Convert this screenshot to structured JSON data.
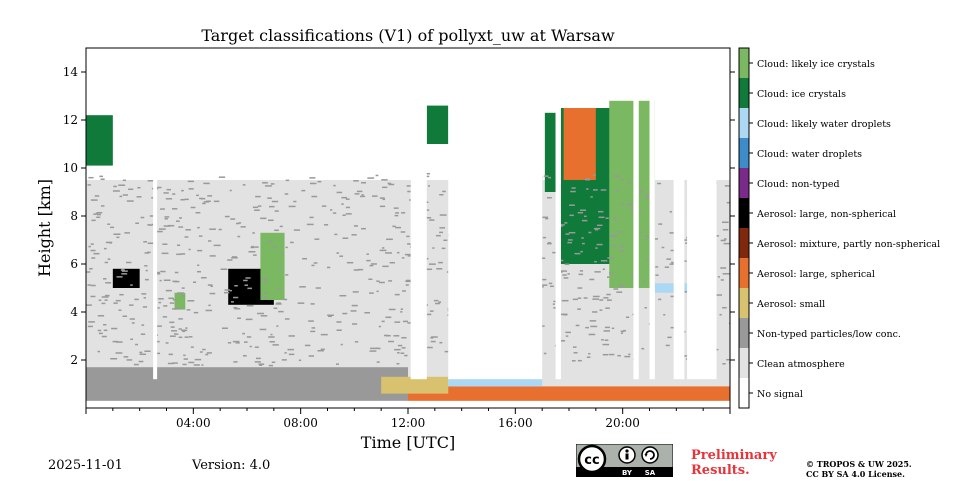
{
  "chart_data": {
    "type": "heatmap",
    "title": "Target classifications (V1) of pollyxt_uw at Warsaw",
    "xlabel": "Time [UTC]",
    "ylabel": "Height [km]",
    "xlim": [
      0,
      24
    ],
    "ylim": [
      0,
      15
    ],
    "x_ticks": [
      {
        "value": 4,
        "label": "04:00"
      },
      {
        "value": 8,
        "label": "08:00"
      },
      {
        "value": 12,
        "label": "12:00"
      },
      {
        "value": 16,
        "label": "16:00"
      },
      {
        "value": 20,
        "label": "20:00"
      }
    ],
    "y_ticks": [
      {
        "value": 2,
        "label": "2"
      },
      {
        "value": 4,
        "label": "4"
      },
      {
        "value": 6,
        "label": "6"
      },
      {
        "value": 8,
        "label": "8"
      },
      {
        "value": 10,
        "label": "10"
      },
      {
        "value": 12,
        "label": "12"
      },
      {
        "value": 14,
        "label": "14"
      }
    ],
    "colorbar": [
      {
        "label": "No signal",
        "color": "#ffffff"
      },
      {
        "label": "Clean atmosphere",
        "color": "#e2e2e2"
      },
      {
        "label": "Non-typed particles/low conc.",
        "color": "#999999"
      },
      {
        "label": "Aerosol: small",
        "color": "#d9c26f"
      },
      {
        "label": "Aerosol: large, spherical",
        "color": "#e8702f"
      },
      {
        "label": "Aerosol: mixture, partly non-spherical",
        "color": "#80280d"
      },
      {
        "label": "Aerosol: large, non-spherical",
        "color": "#000000"
      },
      {
        "label": "Cloud: non-typed",
        "color": "#7a2a8a"
      },
      {
        "label": "Cloud: water droplets",
        "color": "#3d8bc9"
      },
      {
        "label": "Cloud: likely water droplets",
        "color": "#acd8f3"
      },
      {
        "label": "Cloud: ice crystals",
        "color": "#0f7a3a"
      },
      {
        "label": "Cloud: likely ice crystals",
        "color": "#7ab862"
      }
    ],
    "regions": [
      {
        "class": "Clean atmosphere",
        "t": [
          0,
          24
        ],
        "h": [
          0.3,
          9.5
        ]
      },
      {
        "class": "Non-typed particles/low conc.",
        "t": [
          0,
          12
        ],
        "h": [
          0.3,
          1.7
        ]
      },
      {
        "class": "Aerosol: large, spherical",
        "t": [
          12,
          24
        ],
        "h": [
          0.3,
          0.9
        ]
      },
      {
        "class": "Aerosol: small",
        "t": [
          11,
          13.5
        ],
        "h": [
          0.6,
          1.3
        ]
      },
      {
        "class": "Cloud: likely water droplets",
        "t": [
          13.5,
          17
        ],
        "h": [
          0.9,
          1.4
        ]
      },
      {
        "class": "Aerosol: large, non-spherical",
        "t": [
          1,
          2
        ],
        "h": [
          5.0,
          5.8
        ]
      },
      {
        "class": "Aerosol: large, non-spherical",
        "t": [
          5.3,
          7
        ],
        "h": [
          4.3,
          5.8
        ]
      },
      {
        "class": "Cloud: likely ice crystals",
        "t": [
          6.5,
          7.4
        ],
        "h": [
          4.5,
          7.3
        ]
      },
      {
        "class": "Cloud: likely ice crystals",
        "t": [
          3.3,
          3.7
        ],
        "h": [
          4.1,
          4.8
        ]
      },
      {
        "class": "Cloud: ice crystals",
        "t": [
          12.7,
          13.5
        ],
        "h": [
          11.0,
          12.6
        ]
      },
      {
        "class": "Cloud: ice crystals",
        "t": [
          0,
          1
        ],
        "h": [
          10.1,
          12.2
        ]
      },
      {
        "class": "Cloud: ice crystals",
        "t": [
          17.1,
          17.5
        ],
        "h": [
          9.0,
          12.3
        ]
      },
      {
        "class": "Cloud: ice crystals",
        "t": [
          17.6,
          20.5
        ],
        "h": [
          6.0,
          12.5
        ]
      },
      {
        "class": "Cloud: likely ice crystals",
        "t": [
          19.5,
          21.2
        ],
        "h": [
          5.0,
          12.8
        ]
      },
      {
        "class": "Aerosol: large, spherical",
        "t": [
          17.8,
          19
        ],
        "h": [
          9.5,
          12.5
        ]
      },
      {
        "class": "Cloud: likely water droplets",
        "t": [
          21.2,
          22.5
        ],
        "h": [
          4.8,
          5.2
        ]
      }
    ]
  },
  "footer": {
    "date": "2025-11-01",
    "version": "Version: 4.0",
    "preliminary_line1": "Preliminary",
    "preliminary_line2": "Results.",
    "copyright_line1": "© TROPOS & UW 2025.",
    "copyright_line2": "CC BY SA 4.0 License.",
    "license_by": "BY",
    "license_sa": "SA",
    "license_cc": "cc"
  }
}
